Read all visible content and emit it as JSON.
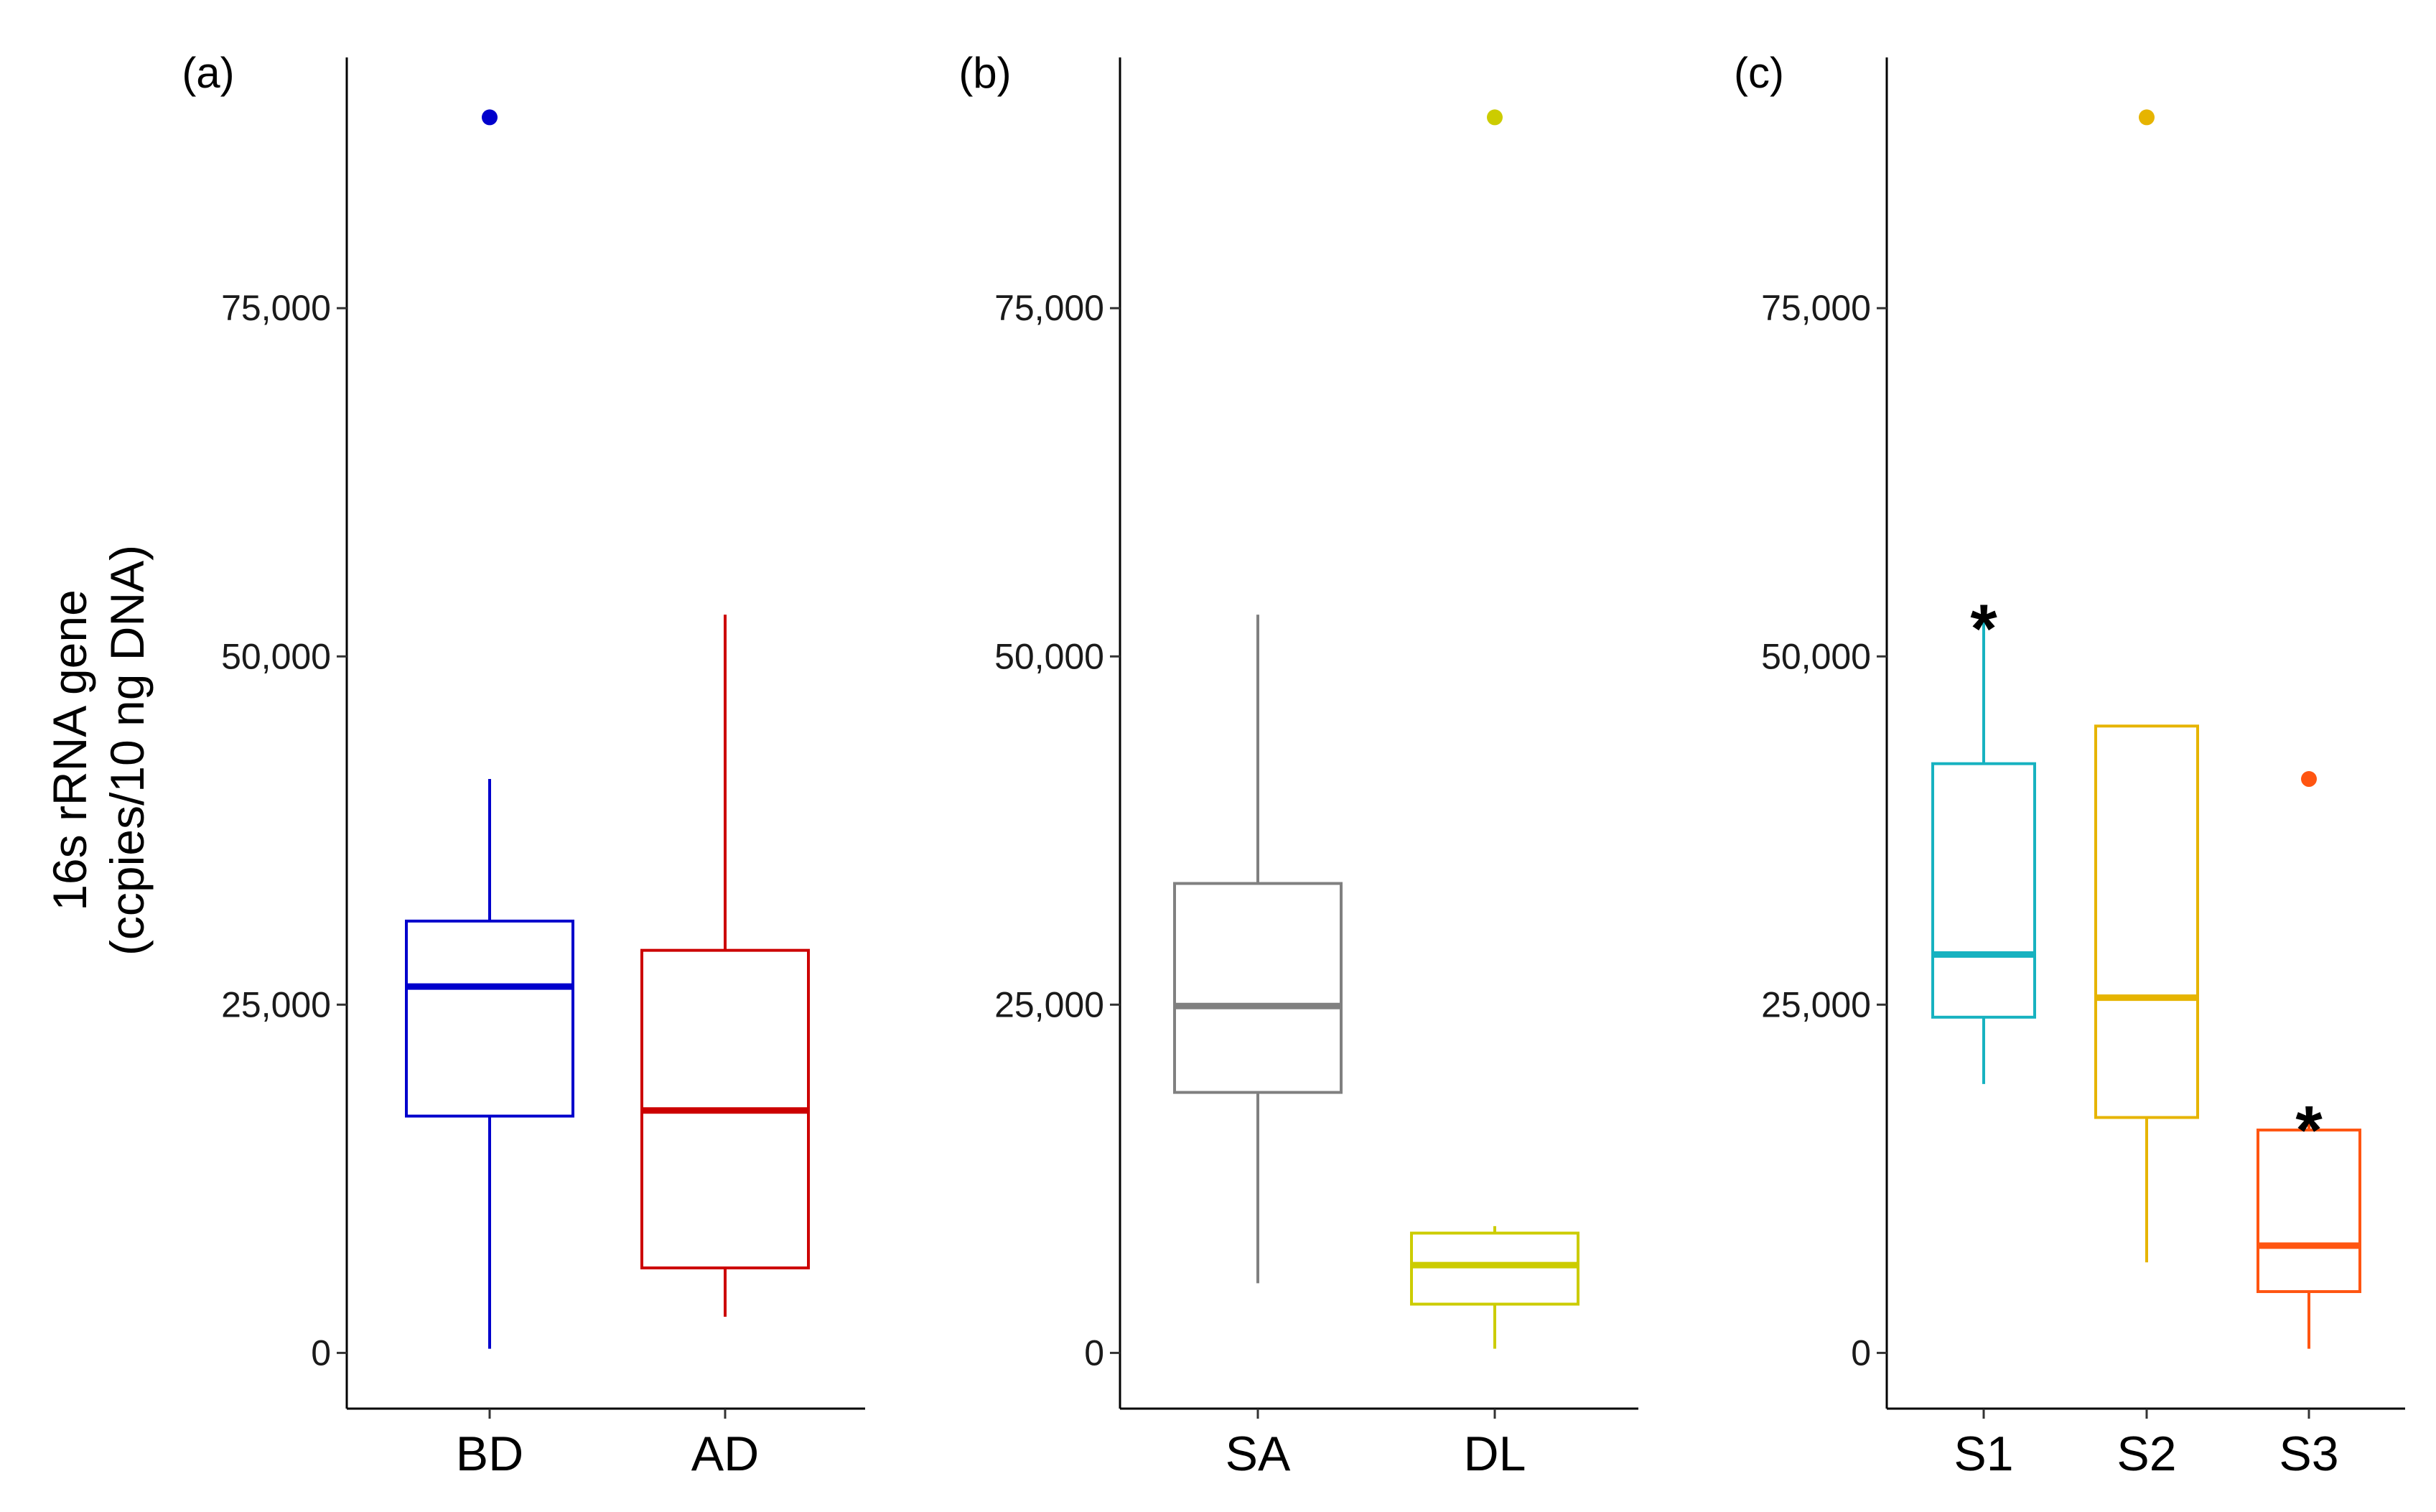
{
  "y_title": {
    "line1": "16s rRNA gene",
    "line2": "(ccpies/10 ng DNA)"
  },
  "y_axis": {
    "ylim": [
      -4000,
      93000
    ],
    "ticks": [
      0,
      25000,
      50000,
      75000
    ],
    "tick_labels": [
      "0",
      "25,000",
      "50,000",
      "75,000"
    ]
  },
  "chart_data": [
    {
      "type": "boxplot",
      "panel_label": "(a)",
      "categories": [
        "BD",
        "AD"
      ],
      "colors": [
        "#0000cc",
        "#cc0000"
      ],
      "boxes": [
        {
          "category": "BD",
          "whisker_low": 300,
          "q1": 17000,
          "median": 26300,
          "q3": 31000,
          "whisker_high": 41200,
          "outliers": [
            88700
          ]
        },
        {
          "category": "AD",
          "whisker_low": 2600,
          "q1": 6100,
          "median": 17400,
          "q3": 28900,
          "whisker_high": 53000,
          "outliers": []
        }
      ],
      "annotations": []
    },
    {
      "type": "boxplot",
      "panel_label": "(b)",
      "categories": [
        "SA",
        "DL"
      ],
      "colors": [
        "#808080",
        "#cccc00"
      ],
      "boxes": [
        {
          "category": "SA",
          "whisker_low": 5000,
          "q1": 18700,
          "median": 24900,
          "q3": 33700,
          "whisker_high": 53000,
          "outliers": []
        },
        {
          "category": "DL",
          "whisker_low": 300,
          "q1": 3500,
          "median": 6300,
          "q3": 8600,
          "whisker_high": 9100,
          "outliers": [
            88700
          ]
        }
      ],
      "annotations": []
    },
    {
      "type": "boxplot",
      "panel_label": "(c)",
      "categories": [
        "S1",
        "S2",
        "S3"
      ],
      "colors": [
        "#17b2c0",
        "#e6b400",
        "#ff5511"
      ],
      "boxes": [
        {
          "category": "S1",
          "whisker_low": 19300,
          "q1": 24100,
          "median": 28600,
          "q3": 42300,
          "whisker_high": 53000,
          "outliers": []
        },
        {
          "category": "S2",
          "whisker_low": 6500,
          "q1": 16900,
          "median": 25500,
          "q3": 45000,
          "whisker_high": 45000,
          "outliers": [
            88700
          ]
        },
        {
          "category": "S3",
          "whisker_low": 300,
          "q1": 4400,
          "median": 7700,
          "q3": 16000,
          "whisker_high": 17000,
          "outliers": [
            41200
          ]
        }
      ],
      "annotations": [
        {
          "category": "S1",
          "text": "*",
          "y": 53500
        },
        {
          "category": "S3",
          "text": "*",
          "y": 17500
        }
      ]
    }
  ]
}
